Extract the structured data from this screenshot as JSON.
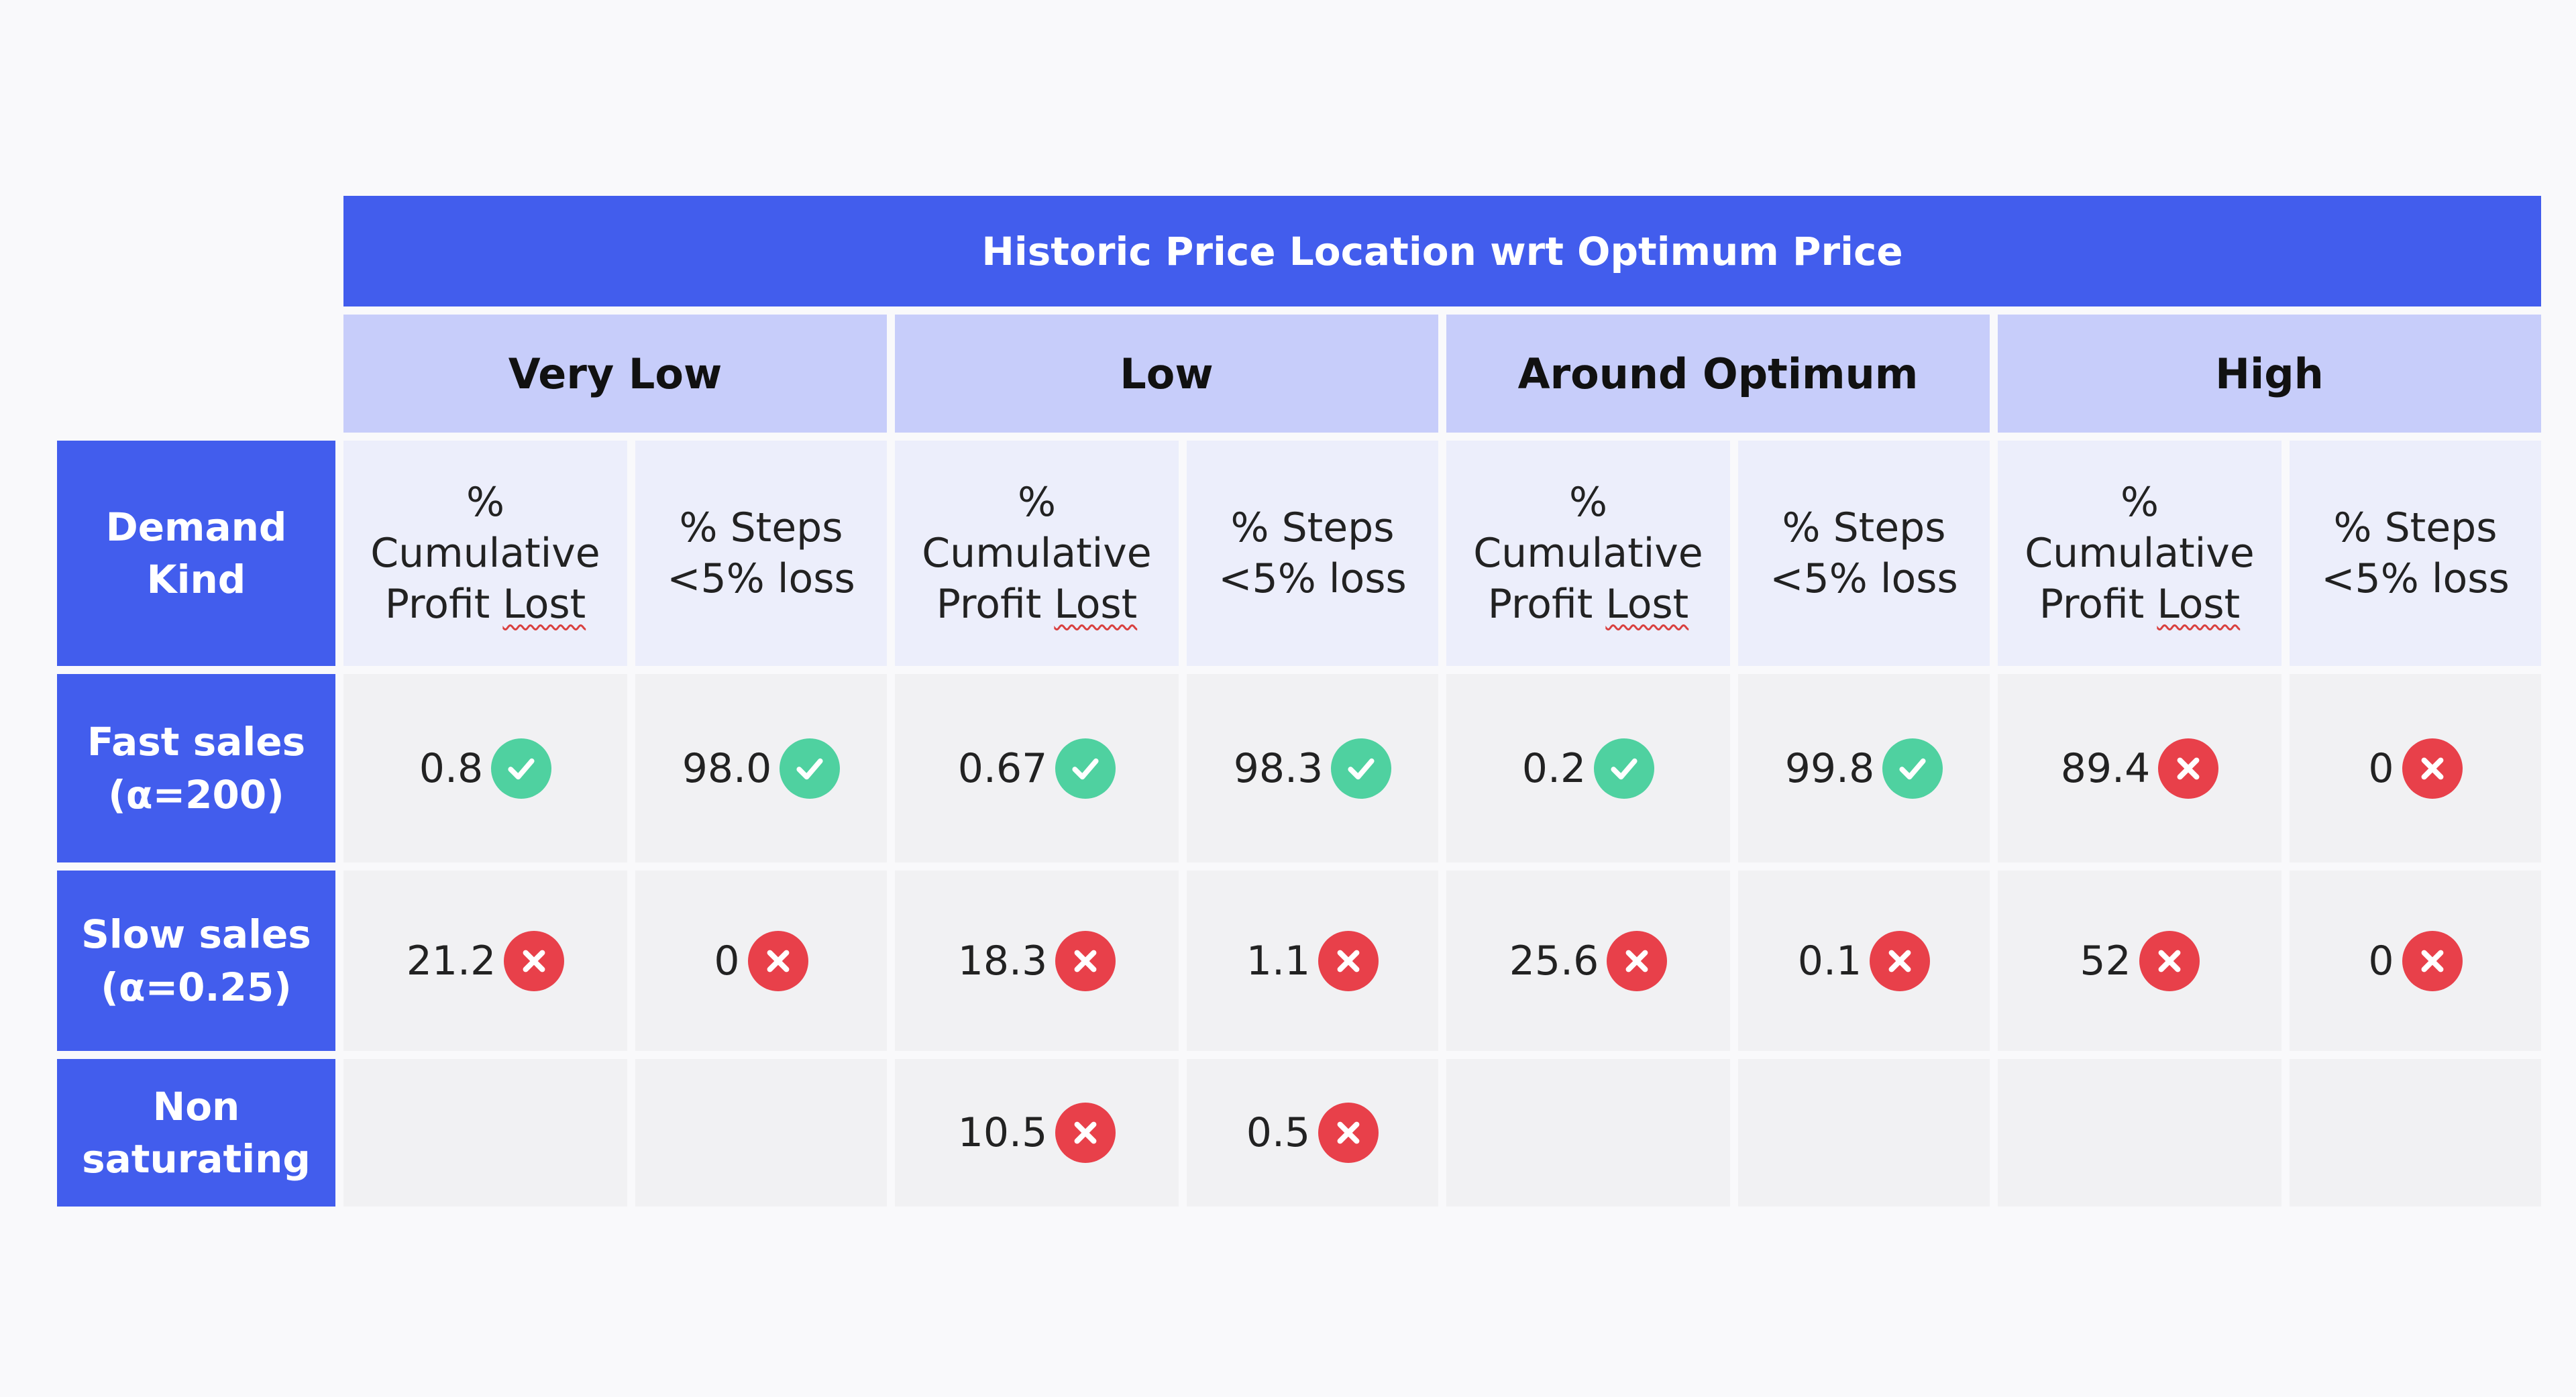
{
  "title": "Historic Price Location wrt Optimum Price",
  "groups": [
    "Very Low",
    "Low",
    "Around Optimum",
    "High"
  ],
  "metrics": {
    "profit_line1": "%",
    "profit_line2": "Cumulative",
    "profit_line3_a": "Profit ",
    "profit_line3_b": "Lost",
    "steps_line1": "% Steps",
    "steps_line2": "<5% loss"
  },
  "row_header_label": {
    "line1": "Demand",
    "line2": "Kind"
  },
  "rows": [
    {
      "line1": "Fast sales",
      "line2": "(α=200)",
      "cells": [
        {
          "value": "0.8",
          "status": "check"
        },
        {
          "value": "98.0",
          "status": "check"
        },
        {
          "value": "0.67",
          "status": "check"
        },
        {
          "value": "98.3",
          "status": "check"
        },
        {
          "value": "0.2",
          "status": "check"
        },
        {
          "value": "99.8",
          "status": "check"
        },
        {
          "value": "89.4",
          "status": "cross"
        },
        {
          "value": "0",
          "status": "cross"
        }
      ]
    },
    {
      "line1": "Slow sales",
      "line2": "(α=0.25)",
      "cells": [
        {
          "value": "21.2",
          "status": "cross"
        },
        {
          "value": "0",
          "status": "cross"
        },
        {
          "value": "18.3",
          "status": "cross"
        },
        {
          "value": "1.1",
          "status": "cross"
        },
        {
          "value": "25.6",
          "status": "cross"
        },
        {
          "value": "0.1",
          "status": "cross"
        },
        {
          "value": "52",
          "status": "cross"
        },
        {
          "value": "0",
          "status": "cross"
        }
      ]
    },
    {
      "line1": "Non",
      "line2": "saturating",
      "cells": [
        {
          "value": "",
          "status": ""
        },
        {
          "value": "",
          "status": ""
        },
        {
          "value": "10.5",
          "status": "cross"
        },
        {
          "value": "0.5",
          "status": "cross"
        },
        {
          "value": "",
          "status": ""
        },
        {
          "value": "",
          "status": ""
        },
        {
          "value": "",
          "status": ""
        },
        {
          "value": "",
          "status": ""
        }
      ]
    }
  ],
  "colors": {
    "header_blue": "#425ded",
    "group_lavender": "#c7cdfa",
    "metric_bg": "#eceefb",
    "cell_bg": "#f1f1f3",
    "check_green": "#4fd1a0",
    "cross_red": "#e8404a"
  },
  "icons": {
    "check": "check-circle-icon",
    "cross": "x-circle-icon"
  }
}
